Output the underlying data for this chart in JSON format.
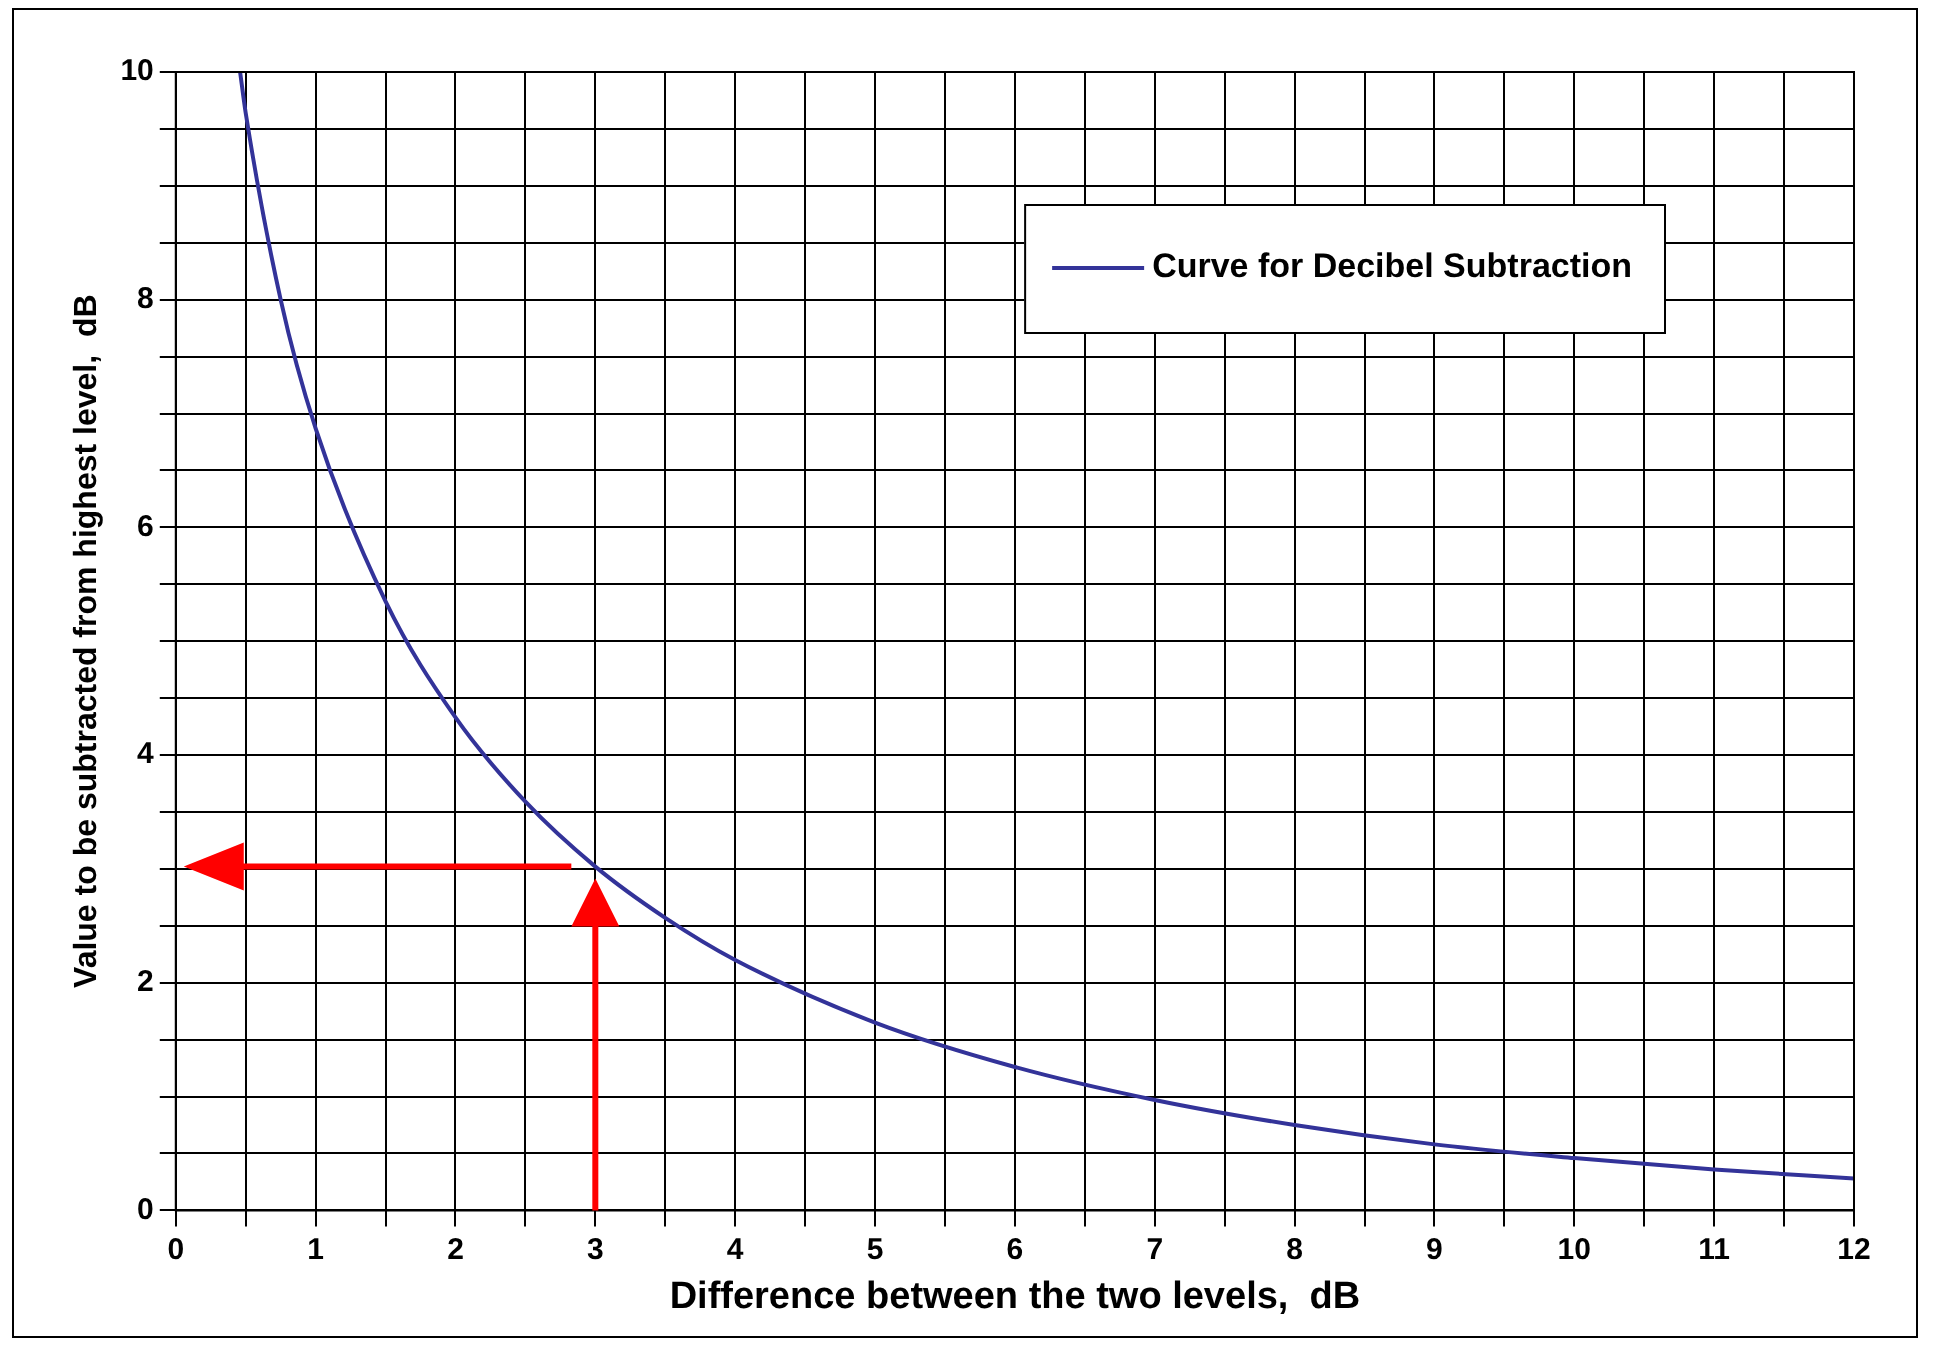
{
  "chart_data": {
    "type": "line",
    "xlabel": "Difference between the two levels,  dB",
    "ylabel": "Value to be subtracted from highest level,  dB",
    "x": [
      0.46,
      0.5,
      0.75,
      1,
      1.5,
      2,
      2.5,
      3,
      3.5,
      4,
      5,
      6,
      7,
      8,
      9,
      10,
      11,
      12
    ],
    "series": [
      {
        "name": "Curve for Decibel Subtraction",
        "color": "#333399",
        "values": [
          10,
          9.64,
          8.0,
          6.87,
          5.35,
          4.33,
          3.59,
          3.02,
          2.57,
          2.2,
          1.65,
          1.26,
          0.97,
          0.75,
          0.58,
          0.46,
          0.36,
          0.28
        ]
      }
    ],
    "xlim": [
      0,
      12
    ],
    "xticks": [
      0,
      {
        "value": 0.5,
        "label": null
      },
      1,
      {
        "value": 1.5,
        "label": null
      },
      2,
      {
        "value": 2.5,
        "label": null
      },
      3,
      {
        "value": 3.5,
        "label": null
      },
      4,
      {
        "value": 4.5,
        "label": null
      },
      5,
      {
        "value": 5.5,
        "label": null
      },
      6,
      {
        "value": 6.5,
        "label": null
      },
      7,
      {
        "value": 7.5,
        "label": null
      },
      8,
      {
        "value": 8.5,
        "label": null
      },
      9,
      {
        "value": 9.5,
        "label": null
      },
      10,
      {
        "value": 10.5,
        "label": null
      },
      11,
      {
        "value": 11.5,
        "label": null
      },
      12
    ],
    "ylim": [
      0,
      10
    ],
    "yticks": [
      0,
      {
        "value": 0.5,
        "label": null
      },
      {
        "value": 1,
        "label": null
      },
      {
        "value": 1.5,
        "label": null
      },
      2,
      {
        "value": 2.5,
        "label": null
      },
      {
        "value": 3,
        "label": null
      },
      {
        "value": 3.5,
        "label": null
      },
      4,
      {
        "value": 4.5,
        "label": null
      },
      {
        "value": 5,
        "label": null
      },
      {
        "value": 5.5,
        "label": null
      },
      6,
      {
        "value": 6.5,
        "label": null
      },
      {
        "value": 7,
        "label": null
      },
      {
        "value": 7.5,
        "label": null
      },
      8,
      {
        "value": 8.5,
        "label": null
      },
      {
        "value": 9,
        "label": null
      },
      {
        "value": 9.5,
        "label": null
      },
      10
    ],
    "grid": true,
    "legend": "top right",
    "marker": "none",
    "line_style": "solid"
  }
}
